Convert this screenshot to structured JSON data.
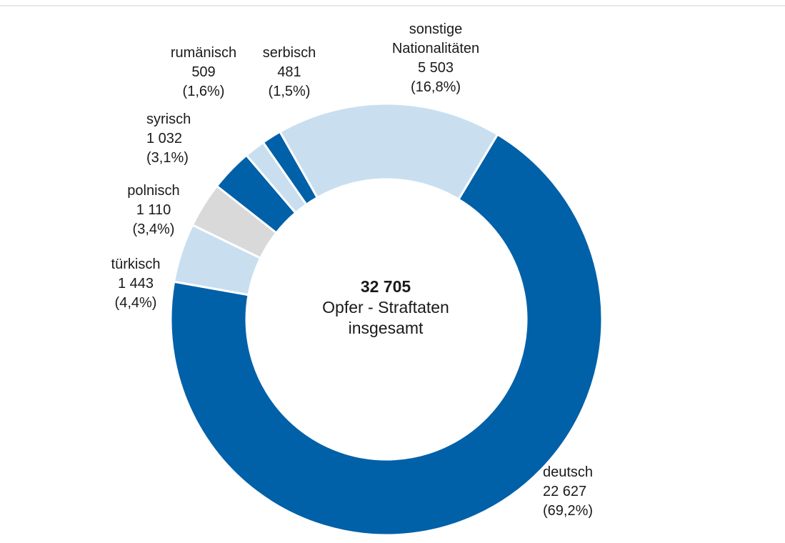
{
  "chart_data": {
    "type": "donut",
    "categories": [
      "deutsch",
      "türkisch",
      "polnisch",
      "syrisch",
      "rumänisch",
      "serbisch",
      "sonstige Nationalitäten"
    ],
    "values": [
      22627,
      1443,
      1110,
      1032,
      509,
      481,
      5503
    ],
    "value_labels": [
      "22 627",
      "1 443",
      "1 110",
      "1 032",
      "509",
      "481",
      "5 503"
    ],
    "percentages": [
      69.2,
      4.4,
      3.4,
      3.1,
      1.6,
      1.5,
      16.8
    ],
    "percentage_labels": [
      "(69,2%)",
      "(4,4%)",
      "(3,4%)",
      "(3,1%)",
      "(1,6%)",
      "(1,5%)",
      "(16,8%)"
    ],
    "colors": [
      "#0060a8",
      "#c9dff0",
      "#d9d9d9",
      "#0060a8",
      "#c9dff0",
      "#0060a8",
      "#c9dff0"
    ],
    "total": 32705,
    "total_label": "32 705",
    "center_text": "Opfer - Straftaten insgesamt"
  }
}
